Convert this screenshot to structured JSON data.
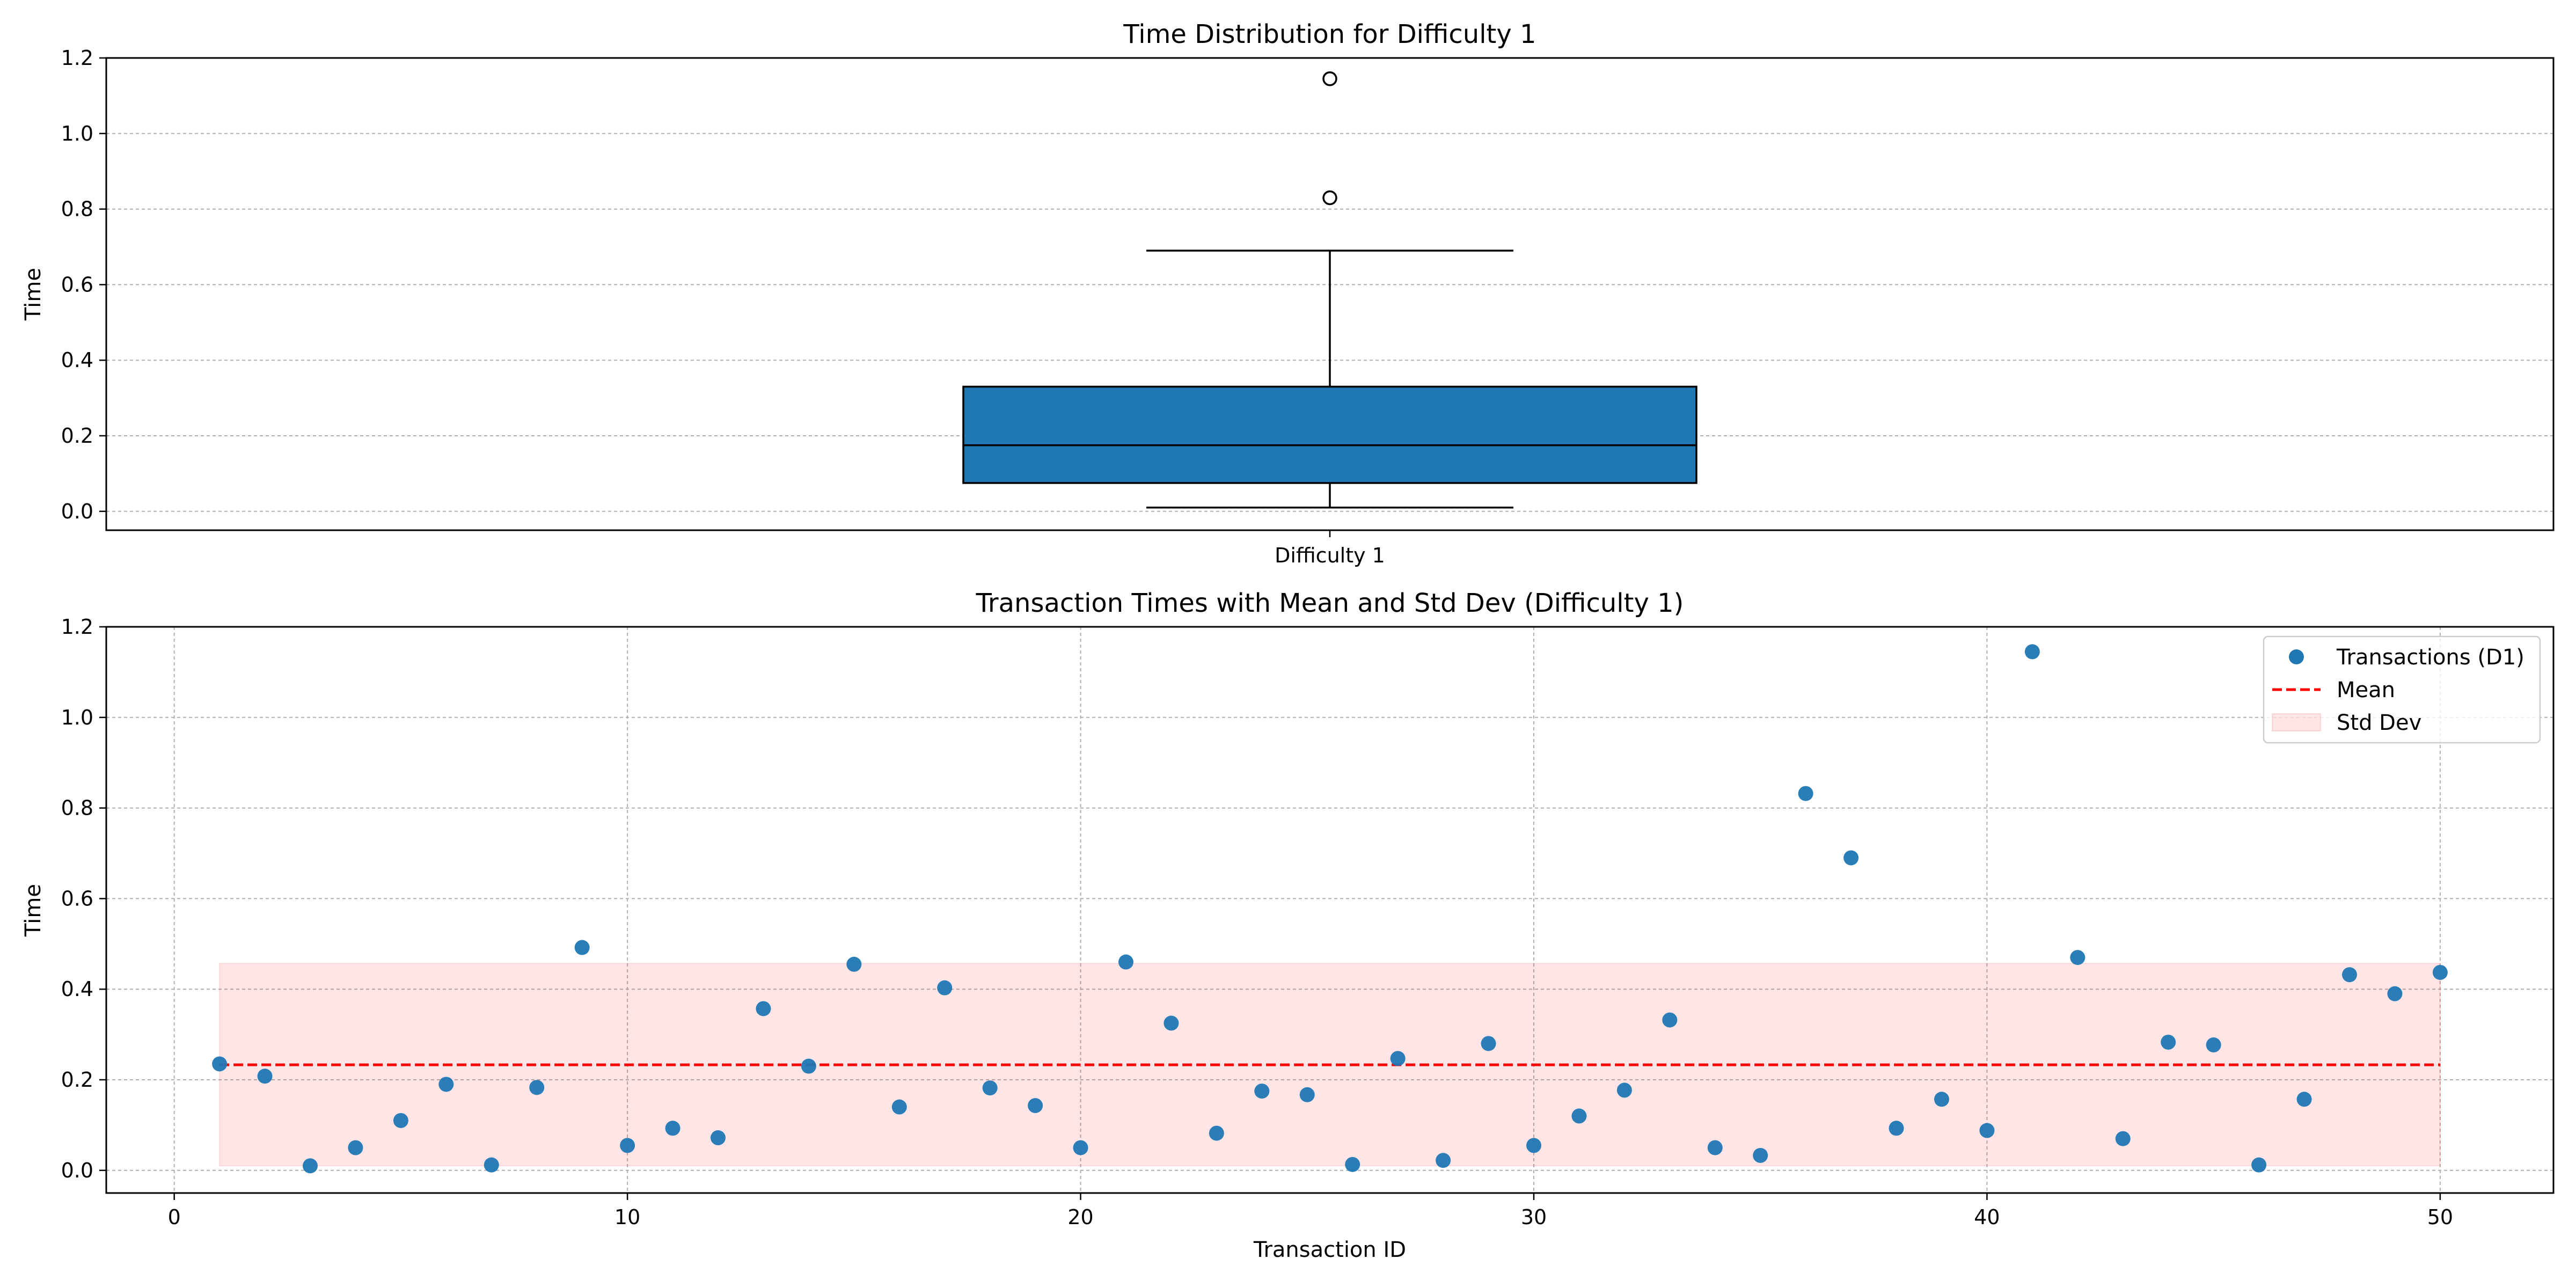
{
  "colors": {
    "scatter": "#1f77b4",
    "mean": "#ff0000",
    "band": "#ff0000",
    "box": "#1f77b4"
  },
  "chart_data": [
    {
      "type": "box",
      "title": "Time Distribution for Difficulty 1",
      "xlabel": "",
      "ylabel": "Time",
      "category": "Difficulty 1",
      "ylim": [
        -0.05,
        1.2
      ],
      "yticks": [
        0.0,
        0.2,
        0.4,
        0.6,
        0.8,
        1.0,
        1.2
      ],
      "yticklabels": [
        "0.0",
        "0.2",
        "0.4",
        "0.6",
        "0.8",
        "1.0",
        "1.2"
      ],
      "grid": "y",
      "stats": {
        "whisker_low": 0.01,
        "q1": 0.075,
        "median": 0.175,
        "q3": 0.33,
        "whisker_high": 0.69
      },
      "outliers": [
        0.83,
        1.145
      ]
    },
    {
      "type": "scatter",
      "title": "Transaction Times with Mean and Std Dev (Difficulty 1)",
      "xlabel": "Transaction ID",
      "ylabel": "Time",
      "xlim": [
        -1.5,
        52.5
      ],
      "ylim": [
        -0.05,
        1.2
      ],
      "xticks": [
        0,
        10,
        20,
        30,
        40,
        50
      ],
      "xticklabels": [
        "0",
        "10",
        "20",
        "30",
        "40",
        "50"
      ],
      "yticks": [
        0.0,
        0.2,
        0.4,
        0.6,
        0.8,
        1.0,
        1.2
      ],
      "yticklabels": [
        "0.0",
        "0.2",
        "0.4",
        "0.6",
        "0.8",
        "1.0",
        "1.2"
      ],
      "grid": "both",
      "legend_position": "top-right",
      "series": [
        {
          "name": "Transactions (D1)",
          "x": [
            1,
            2,
            3,
            4,
            5,
            6,
            7,
            8,
            9,
            10,
            11,
            12,
            13,
            14,
            15,
            16,
            17,
            18,
            19,
            20,
            21,
            22,
            23,
            24,
            25,
            26,
            27,
            28,
            29,
            30,
            31,
            32,
            33,
            34,
            35,
            36,
            37,
            38,
            39,
            40,
            41,
            42,
            43,
            44,
            45,
            46,
            47,
            48,
            49,
            50
          ],
          "y": [
            0.235,
            0.208,
            0.01,
            0.05,
            0.11,
            0.19,
            0.012,
            0.183,
            0.492,
            0.055,
            0.093,
            0.072,
            0.357,
            0.23,
            0.455,
            0.14,
            0.403,
            0.182,
            0.143,
            0.05,
            0.46,
            0.325,
            0.082,
            0.175,
            0.167,
            0.013,
            0.247,
            0.022,
            0.28,
            0.055,
            0.12,
            0.177,
            0.332,
            0.05,
            0.033,
            0.832,
            0.69,
            0.093,
            0.157,
            0.088,
            1.145,
            0.47,
            0.07,
            0.283,
            0.277,
            0.012,
            0.157,
            0.432,
            0.39,
            0.437
          ]
        }
      ],
      "mean": {
        "name": "Mean",
        "value": 0.233,
        "x_range": [
          1,
          50
        ]
      },
      "std_band": {
        "name": "Std Dev",
        "lower": 0.01,
        "upper": 0.457,
        "x_range": [
          1,
          50
        ]
      }
    }
  ]
}
